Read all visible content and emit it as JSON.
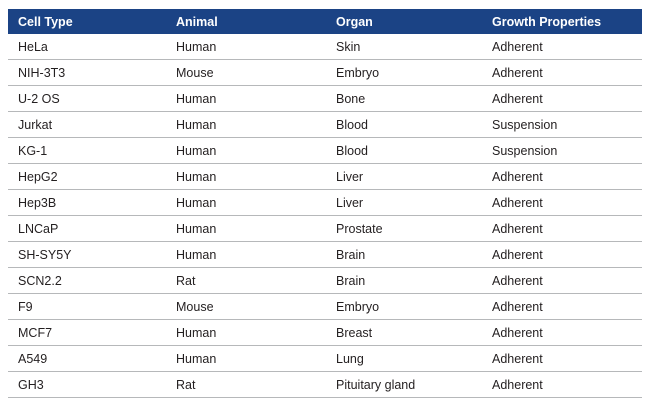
{
  "table": {
    "columns": [
      "Cell Type",
      "Animal",
      "Organ",
      "Growth Properties"
    ],
    "rows": [
      [
        "HeLa",
        "Human",
        "Skin",
        "Adherent"
      ],
      [
        "NIH-3T3",
        "Mouse",
        "Embryo",
        "Adherent"
      ],
      [
        "U-2 OS",
        "Human",
        "Bone",
        "Adherent"
      ],
      [
        "Jurkat",
        "Human",
        "Blood",
        "Suspension"
      ],
      [
        "KG-1",
        "Human",
        "Blood",
        "Suspension"
      ],
      [
        "HepG2",
        "Human",
        "Liver",
        "Adherent"
      ],
      [
        "Hep3B",
        "Human",
        "Liver",
        "Adherent"
      ],
      [
        "LNCaP",
        "Human",
        "Prostate",
        "Adherent"
      ],
      [
        "SH-SY5Y",
        "Human",
        "Brain",
        "Adherent"
      ],
      [
        "SCN2.2",
        "Rat",
        "Brain",
        "Adherent"
      ],
      [
        "F9",
        "Mouse",
        "Embryo",
        "Adherent"
      ],
      [
        "MCF7",
        "Human",
        "Breast",
        "Adherent"
      ],
      [
        "A549",
        "Human",
        "Lung",
        "Adherent"
      ],
      [
        "GH3",
        "Rat",
        "Pituitary gland",
        "Adherent"
      ]
    ],
    "colors": {
      "header_background": "#1b4385",
      "header_text": "#ffffff",
      "row_text": "#231f20",
      "row_divider": "#b6b8ba"
    }
  }
}
